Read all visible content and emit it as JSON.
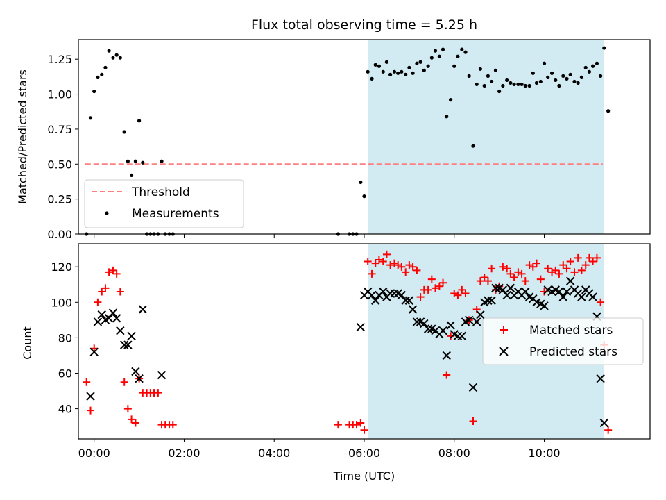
{
  "chart_data": {
    "title": "Flux total observing time = 5.25 h",
    "xlabel": "Time (UTC)",
    "xlim": [
      -0.35,
      12.35
    ],
    "x_ticks": [
      {
        "v": 0,
        "label": "00:00"
      },
      {
        "v": 2,
        "label": "02:00"
      },
      {
        "v": 4,
        "label": "04:00"
      },
      {
        "v": 6,
        "label": "06:00"
      },
      {
        "v": 8,
        "label": "08:00"
      },
      {
        "v": 10,
        "label": "10:00"
      }
    ],
    "shaded_span": [
      6.08,
      11.33
    ],
    "colors": {
      "shade": "#add8e6",
      "threshold": "#ff7f7f",
      "matched": "#ff0000",
      "predicted": "#000000",
      "measure": "#000000"
    },
    "top": {
      "type": "scatter",
      "ylabel": "Matched/Predicted stars",
      "ylim": [
        0,
        1.39
      ],
      "yticks": [
        0.0,
        0.25,
        0.5,
        0.75,
        1.0,
        1.25
      ],
      "ytick_labels": [
        "0.00",
        "0.25",
        "0.50",
        "0.75",
        "1.00",
        "1.25"
      ],
      "threshold": {
        "value": 0.5,
        "x_range": [
          -0.2,
          11.3
        ],
        "label": "Threshold"
      },
      "measurements_label": "Measurements",
      "measurements": [
        [
          -0.17,
          0.0
        ],
        [
          -0.08,
          0.83
        ],
        [
          0.0,
          1.02
        ],
        [
          0.08,
          1.12
        ],
        [
          0.17,
          1.14
        ],
        [
          0.25,
          1.19
        ],
        [
          0.33,
          1.31
        ],
        [
          0.42,
          1.26
        ],
        [
          0.5,
          1.28
        ],
        [
          0.58,
          1.26
        ],
        [
          0.67,
          0.73
        ],
        [
          0.75,
          0.52
        ],
        [
          0.83,
          0.42
        ],
        [
          0.92,
          0.52
        ],
        [
          1.0,
          0.81
        ],
        [
          1.08,
          0.51
        ],
        [
          1.17,
          0.0
        ],
        [
          1.25,
          0.0
        ],
        [
          1.33,
          0.0
        ],
        [
          1.42,
          0.0
        ],
        [
          1.5,
          0.52
        ],
        [
          1.58,
          0.0
        ],
        [
          1.67,
          0.0
        ],
        [
          1.75,
          0.0
        ],
        [
          5.42,
          0.0
        ],
        [
          5.67,
          0.0
        ],
        [
          5.75,
          0.0
        ],
        [
          5.83,
          0.0
        ],
        [
          5.92,
          0.37
        ],
        [
          6.0,
          0.27
        ],
        [
          6.08,
          1.16
        ],
        [
          6.17,
          1.11
        ],
        [
          6.25,
          1.21
        ],
        [
          6.33,
          1.2
        ],
        [
          6.42,
          1.16
        ],
        [
          6.5,
          1.23
        ],
        [
          6.58,
          1.14
        ],
        [
          6.67,
          1.16
        ],
        [
          6.75,
          1.15
        ],
        [
          6.83,
          1.16
        ],
        [
          6.92,
          1.14
        ],
        [
          7.0,
          1.19
        ],
        [
          7.08,
          1.15
        ],
        [
          7.17,
          1.22
        ],
        [
          7.25,
          1.23
        ],
        [
          7.33,
          1.17
        ],
        [
          7.42,
          1.2
        ],
        [
          7.5,
          1.26
        ],
        [
          7.58,
          1.31
        ],
        [
          7.67,
          1.27
        ],
        [
          7.75,
          1.32
        ],
        [
          7.83,
          0.84
        ],
        [
          7.92,
          0.96
        ],
        [
          8.0,
          1.2
        ],
        [
          8.08,
          1.27
        ],
        [
          8.17,
          1.32
        ],
        [
          8.25,
          1.3
        ],
        [
          8.33,
          1.13
        ],
        [
          8.42,
          0.63
        ],
        [
          8.5,
          1.07
        ],
        [
          8.58,
          1.18
        ],
        [
          8.67,
          1.06
        ],
        [
          8.75,
          1.13
        ],
        [
          8.83,
          1.09
        ],
        [
          8.92,
          1.17
        ],
        [
          9.0,
          1.02
        ],
        [
          9.08,
          1.06
        ],
        [
          9.17,
          1.1
        ],
        [
          9.25,
          1.08
        ],
        [
          9.33,
          1.07
        ],
        [
          9.42,
          1.07
        ],
        [
          9.5,
          1.07
        ],
        [
          9.58,
          1.06
        ],
        [
          9.67,
          1.06
        ],
        [
          9.75,
          1.15
        ],
        [
          9.83,
          1.08
        ],
        [
          9.92,
          1.09
        ],
        [
          10.0,
          1.22
        ],
        [
          10.08,
          1.12
        ],
        [
          10.17,
          1.15
        ],
        [
          10.25,
          1.1
        ],
        [
          10.33,
          1.06
        ],
        [
          10.42,
          1.13
        ],
        [
          10.5,
          1.11
        ],
        [
          10.58,
          1.14
        ],
        [
          10.67,
          1.09
        ],
        [
          10.75,
          1.08
        ],
        [
          10.83,
          1.12
        ],
        [
          10.92,
          1.19
        ],
        [
          11.0,
          1.16
        ],
        [
          11.08,
          1.2
        ],
        [
          11.17,
          1.22
        ],
        [
          11.25,
          1.13
        ],
        [
          11.33,
          1.33
        ],
        [
          11.42,
          0.88
        ]
      ]
    },
    "bottom": {
      "type": "scatter",
      "ylabel": "Count",
      "ylim": [
        23,
        133
      ],
      "yticks": [
        40,
        60,
        80,
        100,
        120
      ],
      "ytick_labels": [
        "40",
        "60",
        "80",
        "100",
        "120"
      ],
      "matched_label": "Matched stars",
      "predicted_label": "Predicted stars",
      "matched": [
        [
          -0.17,
          55
        ],
        [
          -0.08,
          39
        ],
        [
          0.0,
          74
        ],
        [
          0.08,
          100
        ],
        [
          0.17,
          106
        ],
        [
          0.25,
          108
        ],
        [
          0.33,
          117
        ],
        [
          0.42,
          118
        ],
        [
          0.5,
          116
        ],
        [
          0.58,
          106
        ],
        [
          0.67,
          55
        ],
        [
          0.75,
          40
        ],
        [
          0.83,
          34
        ],
        [
          0.92,
          32
        ],
        [
          1.0,
          57
        ],
        [
          1.08,
          49
        ],
        [
          1.17,
          49
        ],
        [
          1.25,
          49
        ],
        [
          1.33,
          49
        ],
        [
          1.42,
          49
        ],
        [
          1.5,
          31
        ],
        [
          1.58,
          31
        ],
        [
          1.67,
          31
        ],
        [
          1.75,
          31
        ],
        [
          5.42,
          31
        ],
        [
          5.67,
          31
        ],
        [
          5.75,
          31
        ],
        [
          5.83,
          31
        ],
        [
          5.92,
          32
        ],
        [
          6.0,
          28
        ],
        [
          6.08,
          123
        ],
        [
          6.17,
          116
        ],
        [
          6.25,
          122
        ],
        [
          6.33,
          124
        ],
        [
          6.42,
          123
        ],
        [
          6.5,
          127
        ],
        [
          6.58,
          121
        ],
        [
          6.67,
          122
        ],
        [
          6.75,
          121
        ],
        [
          6.83,
          120
        ],
        [
          6.92,
          117
        ],
        [
          7.0,
          121
        ],
        [
          7.08,
          120
        ],
        [
          7.17,
          118
        ],
        [
          7.25,
          103
        ],
        [
          7.33,
          107
        ],
        [
          7.42,
          107
        ],
        [
          7.5,
          113
        ],
        [
          7.58,
          108
        ],
        [
          7.67,
          109
        ],
        [
          7.75,
          111
        ],
        [
          7.83,
          59
        ],
        [
          7.92,
          81
        ],
        [
          8.0,
          105
        ],
        [
          8.08,
          104
        ],
        [
          8.17,
          107
        ],
        [
          8.25,
          105
        ],
        [
          8.33,
          90
        ],
        [
          8.42,
          33
        ],
        [
          8.5,
          96
        ],
        [
          8.58,
          112
        ],
        [
          8.67,
          114
        ],
        [
          8.75,
          112
        ],
        [
          8.83,
          119
        ],
        [
          8.92,
          107
        ],
        [
          9.0,
          109
        ],
        [
          9.08,
          120
        ],
        [
          9.17,
          119
        ],
        [
          9.25,
          116
        ],
        [
          9.33,
          114
        ],
        [
          9.42,
          117
        ],
        [
          9.5,
          116
        ],
        [
          9.58,
          112
        ],
        [
          9.67,
          121
        ],
        [
          9.75,
          120
        ],
        [
          9.83,
          122
        ],
        [
          9.92,
          113
        ],
        [
          10.0,
          106
        ],
        [
          10.08,
          119
        ],
        [
          10.17,
          117
        ],
        [
          10.25,
          118
        ],
        [
          10.33,
          116
        ],
        [
          10.42,
          121
        ],
        [
          10.5,
          119
        ],
        [
          10.58,
          123
        ],
        [
          10.67,
          117
        ],
        [
          10.75,
          125
        ],
        [
          10.83,
          118
        ],
        [
          10.92,
          121
        ],
        [
          11.0,
          125
        ],
        [
          11.08,
          123
        ],
        [
          11.17,
          125
        ],
        [
          11.25,
          100
        ],
        [
          11.33,
          76
        ],
        [
          11.42,
          28
        ]
      ],
      "predicted": [
        [
          -0.08,
          47
        ],
        [
          0.0,
          72
        ],
        [
          0.08,
          89
        ],
        [
          0.17,
          93
        ],
        [
          0.25,
          90
        ],
        [
          0.33,
          91
        ],
        [
          0.42,
          94
        ],
        [
          0.5,
          91
        ],
        [
          0.58,
          84
        ],
        [
          0.67,
          76
        ],
        [
          0.75,
          76
        ],
        [
          0.83,
          81
        ],
        [
          0.92,
          61
        ],
        [
          1.0,
          57
        ],
        [
          1.08,
          96
        ],
        [
          1.5,
          59
        ],
        [
          5.92,
          86
        ],
        [
          6.0,
          104
        ],
        [
          6.08,
          106
        ],
        [
          6.17,
          104
        ],
        [
          6.25,
          101
        ],
        [
          6.33,
          104
        ],
        [
          6.42,
          106
        ],
        [
          6.5,
          103
        ],
        [
          6.58,
          105
        ],
        [
          6.67,
          105
        ],
        [
          6.75,
          105
        ],
        [
          6.83,
          104
        ],
        [
          6.92,
          101
        ],
        [
          7.0,
          101
        ],
        [
          7.08,
          96
        ],
        [
          7.17,
          89
        ],
        [
          7.25,
          89
        ],
        [
          7.33,
          88
        ],
        [
          7.42,
          85
        ],
        [
          7.5,
          85
        ],
        [
          7.58,
          84
        ],
        [
          7.67,
          82
        ],
        [
          7.75,
          84
        ],
        [
          7.83,
          70
        ],
        [
          7.92,
          87
        ],
        [
          8.0,
          82
        ],
        [
          8.08,
          81
        ],
        [
          8.17,
          81
        ],
        [
          8.25,
          89
        ],
        [
          8.33,
          90
        ],
        [
          8.42,
          52
        ],
        [
          8.5,
          89
        ],
        [
          8.58,
          93
        ],
        [
          8.67,
          100
        ],
        [
          8.75,
          101
        ],
        [
          8.83,
          101
        ],
        [
          8.92,
          108
        ],
        [
          9.0,
          108
        ],
        [
          9.08,
          107
        ],
        [
          9.17,
          104
        ],
        [
          9.25,
          108
        ],
        [
          9.33,
          104
        ],
        [
          9.42,
          106
        ],
        [
          9.5,
          104
        ],
        [
          9.58,
          106
        ],
        [
          9.67,
          103
        ],
        [
          9.75,
          102
        ],
        [
          9.83,
          100
        ],
        [
          9.92,
          99
        ],
        [
          10.0,
          98
        ],
        [
          10.08,
          107
        ],
        [
          10.17,
          106
        ],
        [
          10.25,
          107
        ],
        [
          10.33,
          106
        ],
        [
          10.42,
          103
        ],
        [
          10.5,
          106
        ],
        [
          10.58,
          112
        ],
        [
          10.67,
          107
        ],
        [
          10.75,
          105
        ],
        [
          10.83,
          103
        ],
        [
          10.92,
          107
        ],
        [
          11.0,
          105
        ],
        [
          11.08,
          103
        ],
        [
          11.17,
          92
        ],
        [
          11.25,
          57
        ],
        [
          11.33,
          32
        ]
      ]
    }
  }
}
